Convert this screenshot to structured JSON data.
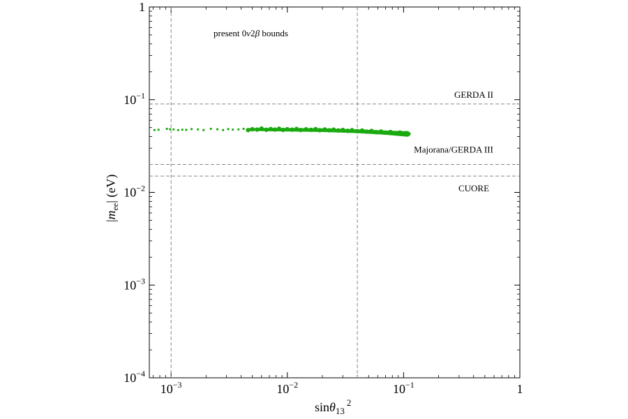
{
  "chart_data": {
    "type": "scatter",
    "title": "",
    "xlabel": {
      "base": "sin",
      "theta": "θ",
      "subscript": "13",
      "superscript": "2"
    },
    "ylabel": {
      "prefix": "|",
      "m": "m",
      "subscript": "ee",
      "suffix": "| (eV)"
    },
    "xscale": "log",
    "yscale": "log",
    "xlim": [
      0.00065,
      1
    ],
    "ylim": [
      0.0001,
      1
    ],
    "grid": false,
    "x_ticks": [
      {
        "value": 0.001,
        "base": "10",
        "exp": "−3"
      },
      {
        "value": 0.01,
        "base": "10",
        "exp": "−2"
      },
      {
        "value": 0.1,
        "base": "10",
        "exp": "−1"
      },
      {
        "value": 1,
        "base": "1",
        "exp": ""
      }
    ],
    "y_ticks": [
      {
        "value": 0.0001,
        "base": "10",
        "exp": "−4"
      },
      {
        "value": 0.001,
        "base": "10",
        "exp": "−3"
      },
      {
        "value": 0.01,
        "base": "10",
        "exp": "−2"
      },
      {
        "value": 0.1,
        "base": "10",
        "exp": "−1"
      },
      {
        "value": 1,
        "base": "1",
        "exp": ""
      }
    ],
    "series_color": "#1aaa10",
    "reference_line_color": "#888888",
    "horizontal_lines": [
      {
        "y": 0.09,
        "label": "GERDA II"
      },
      {
        "y": 0.02,
        "label": "Majorana/GERDA III"
      },
      {
        "y": 0.015,
        "label": "CUORE"
      }
    ],
    "vertical_lines": [
      {
        "x": 0.001
      },
      {
        "x": 0.04
      }
    ],
    "annotation": "present 0νββ bounds",
    "annotation_math": {
      "pre": "present 0",
      "nu": "ν",
      "two": "2",
      "beta": "β",
      "post": " bounds"
    },
    "series": [
      {
        "points": [
          [
            0.00072,
            0.047
          ],
          [
            0.00078,
            0.0475
          ],
          [
            0.00092,
            0.0485
          ],
          [
            0.00098,
            0.048
          ],
          [
            0.00105,
            0.0478
          ],
          [
            0.00115,
            0.047
          ],
          [
            0.00125,
            0.0475
          ],
          [
            0.00135,
            0.0472
          ],
          [
            0.0015,
            0.0482
          ],
          [
            0.0017,
            0.0478
          ],
          [
            0.0019,
            0.047
          ],
          [
            0.0022,
            0.0485
          ],
          [
            0.0025,
            0.048
          ],
          [
            0.0028,
            0.047
          ],
          [
            0.0031,
            0.0482
          ],
          [
            0.0034,
            0.0476
          ],
          [
            0.0038,
            0.0478
          ],
          [
            0.0042,
            0.0485
          ],
          [
            0.0046,
            0.047
          ],
          [
            0.005,
            0.048
          ],
          [
            0.0055,
            0.0476
          ],
          [
            0.006,
            0.0488
          ],
          [
            0.0066,
            0.0474
          ],
          [
            0.0072,
            0.0482
          ],
          [
            0.0078,
            0.0476
          ],
          [
            0.0085,
            0.0486
          ],
          [
            0.0092,
            0.0472
          ],
          [
            0.01,
            0.048
          ],
          [
            0.011,
            0.0475
          ],
          [
            0.012,
            0.0483
          ],
          [
            0.013,
            0.0471
          ],
          [
            0.0145,
            0.0479
          ],
          [
            0.016,
            0.0473
          ],
          [
            0.0175,
            0.0481
          ],
          [
            0.019,
            0.0469
          ],
          [
            0.021,
            0.0477
          ],
          [
            0.023,
            0.0468
          ],
          [
            0.025,
            0.0475
          ],
          [
            0.0275,
            0.0466
          ],
          [
            0.03,
            0.0472
          ],
          [
            0.033,
            0.0462
          ],
          [
            0.036,
            0.0469
          ],
          [
            0.04,
            0.0458
          ],
          [
            0.044,
            0.0465
          ],
          [
            0.048,
            0.0453
          ],
          [
            0.053,
            0.046
          ],
          [
            0.058,
            0.0447
          ],
          [
            0.064,
            0.0454
          ],
          [
            0.07,
            0.0441
          ],
          [
            0.077,
            0.0448
          ],
          [
            0.085,
            0.0436
          ],
          [
            0.093,
            0.0442
          ],
          [
            0.1,
            0.043
          ],
          [
            0.105,
            0.0436
          ],
          [
            0.11,
            0.0428
          ]
        ]
      }
    ]
  }
}
